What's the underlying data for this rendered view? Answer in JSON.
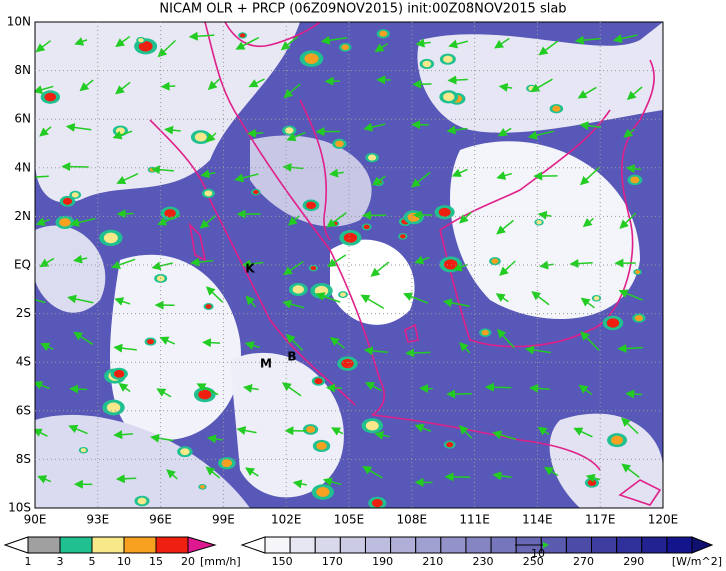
{
  "header": {
    "title": "NICAM OLR + PRCP (06Z09NOV2015) init:00Z08NOV2015 slab"
  },
  "map": {
    "lon_labels": [
      "90E",
      "93E",
      "96E",
      "99E",
      "102E",
      "105E",
      "108E",
      "111E",
      "114E",
      "117E",
      "120E"
    ],
    "lat_labels": [
      "10N",
      "8N",
      "6N",
      "4N",
      "2N",
      "EQ",
      "2S",
      "4S",
      "6S",
      "8S",
      "10S"
    ],
    "markers": [
      "K",
      "M",
      "B"
    ]
  },
  "legend": {
    "precip": {
      "labels": [
        "1",
        "3",
        "5",
        "10",
        "15",
        "20"
      ],
      "unit": "[mm/h]"
    },
    "olr": {
      "labels": [
        "150",
        "170",
        "190",
        "210",
        "230",
        "250",
        "270",
        "290"
      ],
      "unit": "[W/m^2]"
    },
    "vector_ref": "10"
  }
}
